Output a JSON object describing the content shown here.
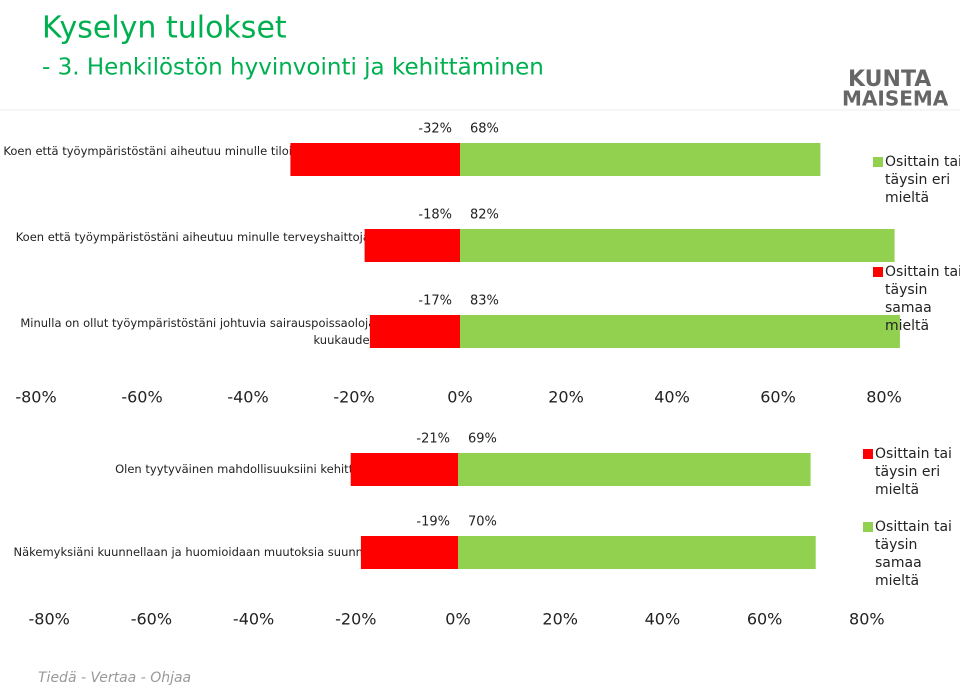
{
  "header": {
    "title": "Kyselyn tulokset",
    "subtitle": "- 3. Henkilöstön hyvinvointi ja kehittäminen"
  },
  "logo": {
    "line1": "KUNTA",
    "line2": "MAISEMA"
  },
  "footer": "Tiedä - Vertaa - Ohjaa",
  "chart_data": [
    {
      "type": "bar",
      "orientation": "horizontal",
      "categories": [
        "Koen että työympäristöstäni aiheutuu minulle tiloista johtuvia terveyshaittoja (1-5)",
        "Koen että työympäristöstäni aiheutuu minulle terveyshaittoja muista syistä (1-5)",
        "Minulla on ollut työympäristöstäni johtuvia sairauspoissaoloja kuluneen 12 kuukauden aikana (1-5)"
      ],
      "series": [
        {
          "name": "Osittain tai täysin samaa mieltä",
          "color": "#ff0000",
          "values": [
            -32,
            -18,
            -17
          ],
          "value_labels": [
            "-32%",
            "-18%",
            "-17%"
          ]
        },
        {
          "name": "Osittain tai täysin eri mieltä",
          "color": "#92d050",
          "values": [
            68,
            82,
            83
          ],
          "value_labels": [
            "68%",
            "82%",
            "83%"
          ]
        }
      ],
      "xlim": [
        -80,
        80
      ],
      "xticks": [
        {
          "value": -80,
          "label": "-80%"
        },
        {
          "value": -60,
          "label": "-60%"
        },
        {
          "value": -40,
          "label": "-40%"
        },
        {
          "value": -20,
          "label": "-20%"
        },
        {
          "value": 0,
          "label": "0%"
        },
        {
          "value": 20,
          "label": "20%"
        },
        {
          "value": 40,
          "label": "40%"
        },
        {
          "value": 60,
          "label": "60%"
        },
        {
          "value": 80,
          "label": "80%"
        }
      ],
      "legend": "right",
      "grid": false
    },
    {
      "type": "bar",
      "orientation": "horizontal",
      "categories": [
        "Olen tyytyväinen mahdollisuuksiini kehittyä työssäni (1-5)",
        "Näkemyksiäni kuunnellaan ja huomioidaan muutoksia suunniteltaessa (1-5)"
      ],
      "series": [
        {
          "name": "Osittain tai täysin samaa mieltä",
          "color": "#92d050",
          "values": [
            69,
            70
          ],
          "value_labels": [
            "69%",
            "70%"
          ]
        },
        {
          "name": "Osittain tai täysin eri mieltä",
          "color": "#ff0000",
          "values": [
            -21,
            -19
          ],
          "value_labels": [
            "-21%",
            "-19%"
          ]
        }
      ],
      "xlim": [
        -80,
        80
      ],
      "xticks": [
        {
          "value": -80,
          "label": "-80%"
        },
        {
          "value": -60,
          "label": "-60%"
        },
        {
          "value": -40,
          "label": "-40%"
        },
        {
          "value": -20,
          "label": "-20%"
        },
        {
          "value": 0,
          "label": "0%"
        },
        {
          "value": 20,
          "label": "20%"
        },
        {
          "value": 40,
          "label": "40%"
        },
        {
          "value": 60,
          "label": "60%"
        },
        {
          "value": 80,
          "label": "80%"
        }
      ],
      "legend": "right",
      "grid": false
    }
  ]
}
